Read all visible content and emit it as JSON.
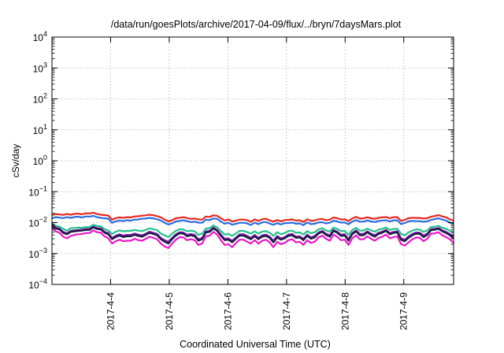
{
  "chart_data": {
    "type": "line",
    "title": "/data/run/goesPlots/archive/2017-04-09/flux/../bryn/7daysMars.plot",
    "xlabel": "Coordinated Universal Time (UTC)",
    "ylabel": "cSv/day",
    "yscale": "log",
    "ylim_exponents": [
      -4,
      4
    ],
    "y_tick_exponents": [
      -4,
      -3,
      -2,
      -1,
      0,
      1,
      2,
      3,
      4
    ],
    "y_tick_base": "10",
    "x_start_day": 3.0,
    "x_end_day": 9.85,
    "x_tick_labels": [
      "2017-4-4",
      "2017-4-5",
      "2017-4-6",
      "2017-4-7",
      "2017-4-8",
      "2017-4-9"
    ],
    "x_tick_days": [
      4,
      5,
      6,
      7,
      8,
      9
    ],
    "grid": true,
    "series": [
      {
        "color": "#e8281e",
        "values": [
          0.0175,
          0.019,
          0.0183,
          0.0178,
          0.019,
          0.018,
          0.0192,
          0.0195,
          0.0185,
          0.02,
          0.0197,
          0.021,
          0.019,
          0.018,
          0.0175,
          0.017,
          0.0125,
          0.014,
          0.0148,
          0.0142,
          0.015,
          0.0147,
          0.0158,
          0.016,
          0.0168,
          0.0172,
          0.018,
          0.0173,
          0.0162,
          0.0148,
          0.0125,
          0.011,
          0.012,
          0.0138,
          0.0143,
          0.015,
          0.014,
          0.0132,
          0.0135,
          0.0127,
          0.0125,
          0.0157,
          0.0153,
          0.0172,
          0.0166,
          0.0137,
          0.0117,
          0.0126,
          0.0109,
          0.0116,
          0.0125,
          0.0125,
          0.0119,
          0.0106,
          0.0127,
          0.0113,
          0.0129,
          0.0133,
          0.0118,
          0.0108,
          0.0121,
          0.011,
          0.0121,
          0.0123,
          0.0127,
          0.0116,
          0.0119,
          0.0105,
          0.0128,
          0.0113,
          0.0117,
          0.0128,
          0.0131,
          0.0119,
          0.0125,
          0.0147,
          0.0138,
          0.0126,
          0.0128,
          0.0112,
          0.0137,
          0.0153,
          0.0135,
          0.0137,
          0.0148,
          0.0138,
          0.0132,
          0.0143,
          0.0148,
          0.0151,
          0.0139,
          0.0149,
          0.0151,
          0.0113,
          0.0123,
          0.0139,
          0.0144,
          0.0141,
          0.0141,
          0.0136,
          0.0139,
          0.0154,
          0.0164,
          0.0175,
          0.0158,
          0.0147,
          0.0127,
          0.0115
        ]
      },
      {
        "color": "#2a6ee0",
        "values": [
          0.0138,
          0.015,
          0.0145,
          0.014,
          0.015,
          0.0142,
          0.0152,
          0.0155,
          0.0146,
          0.0158,
          0.0156,
          0.0166,
          0.015,
          0.0142,
          0.0138,
          0.0134,
          0.0099,
          0.011,
          0.0117,
          0.0112,
          0.0119,
          0.0116,
          0.0125,
          0.0126,
          0.0133,
          0.0136,
          0.0142,
          0.0137,
          0.0128,
          0.0117,
          0.0099,
          0.0087,
          0.0095,
          0.0109,
          0.0113,
          0.0119,
          0.0111,
          0.0104,
          0.0107,
          0.01,
          0.0099,
          0.0124,
          0.0121,
          0.0136,
          0.0131,
          0.0108,
          0.0092,
          0.0099,
          0.0086,
          0.0091,
          0.0099,
          0.0099,
          0.0094,
          0.0084,
          0.01,
          0.0089,
          0.0102,
          0.0105,
          0.0093,
          0.0085,
          0.0096,
          0.0087,
          0.0096,
          0.0097,
          0.01,
          0.0092,
          0.0094,
          0.0083,
          0.0101,
          0.0089,
          0.0092,
          0.0101,
          0.0103,
          0.0094,
          0.0099,
          0.0116,
          0.0109,
          0.01,
          0.0101,
          0.0088,
          0.0108,
          0.0121,
          0.0107,
          0.0108,
          0.0117,
          0.0109,
          0.0104,
          0.0113,
          0.0117,
          0.0119,
          0.011,
          0.0118,
          0.0119,
          0.0089,
          0.0097,
          0.011,
          0.0114,
          0.0111,
          0.0111,
          0.0107,
          0.011,
          0.0122,
          0.013,
          0.0138,
          0.0125,
          0.0116,
          0.01,
          0.0091
        ]
      },
      {
        "color": "#22c28a",
        "values": [
          0.0093,
          0.0078,
          0.0074,
          0.0062,
          0.0055,
          0.0066,
          0.0067,
          0.0069,
          0.0068,
          0.0072,
          0.0071,
          0.0085,
          0.0078,
          0.0076,
          0.0062,
          0.0056,
          0.0043,
          0.0051,
          0.0056,
          0.0052,
          0.0054,
          0.0054,
          0.0058,
          0.0055,
          0.0053,
          0.0058,
          0.0065,
          0.0061,
          0.0057,
          0.0044,
          0.0039,
          0.0034,
          0.0044,
          0.0054,
          0.0061,
          0.006,
          0.0052,
          0.0055,
          0.0052,
          0.004,
          0.0044,
          0.0064,
          0.0066,
          0.0081,
          0.007,
          0.0053,
          0.0041,
          0.0043,
          0.0037,
          0.0045,
          0.0054,
          0.0054,
          0.0049,
          0.0044,
          0.0052,
          0.0044,
          0.0051,
          0.0053,
          0.0047,
          0.0037,
          0.0049,
          0.0042,
          0.0046,
          0.0053,
          0.0055,
          0.0047,
          0.0048,
          0.0041,
          0.0053,
          0.0045,
          0.0049,
          0.006,
          0.0066,
          0.0056,
          0.0051,
          0.0069,
          0.0063,
          0.0053,
          0.0054,
          0.004,
          0.0058,
          0.0068,
          0.0055,
          0.0055,
          0.0064,
          0.0056,
          0.0051,
          0.0059,
          0.0063,
          0.0069,
          0.0058,
          0.0062,
          0.0063,
          0.0043,
          0.0039,
          0.0048,
          0.0055,
          0.006,
          0.0059,
          0.005,
          0.0056,
          0.0072,
          0.0074,
          0.0078,
          0.0068,
          0.0062,
          0.0055,
          0.0046
        ]
      },
      {
        "color": "#7a1aa6",
        "values": [
          0.0085,
          0.0069,
          0.0064,
          0.005,
          0.0045,
          0.0054,
          0.0056,
          0.0058,
          0.0059,
          0.0062,
          0.0062,
          0.0074,
          0.0067,
          0.0065,
          0.0051,
          0.0046,
          0.0032,
          0.0038,
          0.0042,
          0.0038,
          0.004,
          0.004,
          0.0044,
          0.0041,
          0.0039,
          0.0044,
          0.0051,
          0.0047,
          0.0043,
          0.0032,
          0.0027,
          0.0024,
          0.0032,
          0.0042,
          0.0049,
          0.0048,
          0.004,
          0.0043,
          0.004,
          0.0029,
          0.0032,
          0.0052,
          0.0054,
          0.0069,
          0.0058,
          0.0041,
          0.003,
          0.0031,
          0.0026,
          0.0033,
          0.0042,
          0.0042,
          0.0037,
          0.0032,
          0.004,
          0.0032,
          0.0039,
          0.0041,
          0.0035,
          0.0026,
          0.0037,
          0.0031,
          0.0034,
          0.0041,
          0.0043,
          0.0035,
          0.0036,
          0.003,
          0.0041,
          0.0033,
          0.0037,
          0.0048,
          0.0054,
          0.0044,
          0.0039,
          0.0058,
          0.0051,
          0.0041,
          0.0042,
          0.0029,
          0.0046,
          0.0056,
          0.0043,
          0.0043,
          0.0052,
          0.0044,
          0.0039,
          0.0047,
          0.0051,
          0.0058,
          0.0046,
          0.005,
          0.0052,
          0.0031,
          0.0028,
          0.0036,
          0.0043,
          0.0048,
          0.0047,
          0.0038,
          0.0044,
          0.0061,
          0.0063,
          0.0067,
          0.0056,
          0.005,
          0.0043,
          0.0035
        ]
      },
      {
        "color": "#1a1a40",
        "values": [
          0.008,
          0.0064,
          0.006,
          0.0046,
          0.0042,
          0.005,
          0.0052,
          0.0054,
          0.0055,
          0.0058,
          0.0058,
          0.007,
          0.0062,
          0.006,
          0.0047,
          0.0042,
          0.0029,
          0.0034,
          0.0038,
          0.0034,
          0.0036,
          0.0036,
          0.004,
          0.0037,
          0.0035,
          0.004,
          0.0047,
          0.0043,
          0.0039,
          0.0029,
          0.0024,
          0.0021,
          0.0029,
          0.0038,
          0.0045,
          0.0044,
          0.0036,
          0.0039,
          0.0036,
          0.0026,
          0.0029,
          0.0048,
          0.005,
          0.0064,
          0.0054,
          0.0037,
          0.0027,
          0.0028,
          0.0023,
          0.003,
          0.0038,
          0.0038,
          0.0033,
          0.0029,
          0.0036,
          0.0029,
          0.0035,
          0.0037,
          0.0032,
          0.0023,
          0.0033,
          0.0028,
          0.0031,
          0.0037,
          0.0039,
          0.0032,
          0.0033,
          0.0027,
          0.0037,
          0.003,
          0.0033,
          0.0044,
          0.005,
          0.004,
          0.0035,
          0.0054,
          0.0047,
          0.0037,
          0.0038,
          0.0026,
          0.0042,
          0.0052,
          0.0039,
          0.0039,
          0.0048,
          0.004,
          0.0035,
          0.0043,
          0.0047,
          0.0054,
          0.0042,
          0.0046,
          0.0048,
          0.0028,
          0.0025,
          0.0032,
          0.0039,
          0.0044,
          0.0043,
          0.0034,
          0.004,
          0.0057,
          0.0059,
          0.0063,
          0.0052,
          0.0046,
          0.0039,
          0.0031
        ]
      },
      {
        "color": "#e818c8",
        "values": [
          0.0068,
          0.0052,
          0.0047,
          0.0035,
          0.0031,
          0.0037,
          0.004,
          0.0042,
          0.0043,
          0.0046,
          0.0046,
          0.0056,
          0.0049,
          0.0047,
          0.0036,
          0.0031,
          0.0021,
          0.0025,
          0.0028,
          0.0025,
          0.0026,
          0.0026,
          0.003,
          0.0027,
          0.0026,
          0.003,
          0.0035,
          0.0032,
          0.0029,
          0.0021,
          0.0017,
          0.0015,
          0.0021,
          0.0028,
          0.0034,
          0.0033,
          0.0027,
          0.0029,
          0.0027,
          0.0019,
          0.0021,
          0.0036,
          0.0038,
          0.005,
          0.0041,
          0.0027,
          0.0019,
          0.002,
          0.0016,
          0.0022,
          0.0028,
          0.0028,
          0.0024,
          0.0021,
          0.0027,
          0.0021,
          0.0026,
          0.0028,
          0.0023,
          0.0016,
          0.0024,
          0.002,
          0.0022,
          0.0027,
          0.0029,
          0.0023,
          0.0024,
          0.0019,
          0.0027,
          0.0022,
          0.0024,
          0.0033,
          0.0038,
          0.003,
          0.0026,
          0.0041,
          0.0035,
          0.0027,
          0.0028,
          0.0019,
          0.0031,
          0.0039,
          0.0029,
          0.0029,
          0.0036,
          0.003,
          0.0026,
          0.0032,
          0.0035,
          0.0041,
          0.0031,
          0.0034,
          0.0036,
          0.002,
          0.0018,
          0.0023,
          0.0029,
          0.0033,
          0.0032,
          0.0025,
          0.003,
          0.0044,
          0.0045,
          0.0049,
          0.0039,
          0.0034,
          0.0029,
          0.0022
        ]
      }
    ]
  }
}
